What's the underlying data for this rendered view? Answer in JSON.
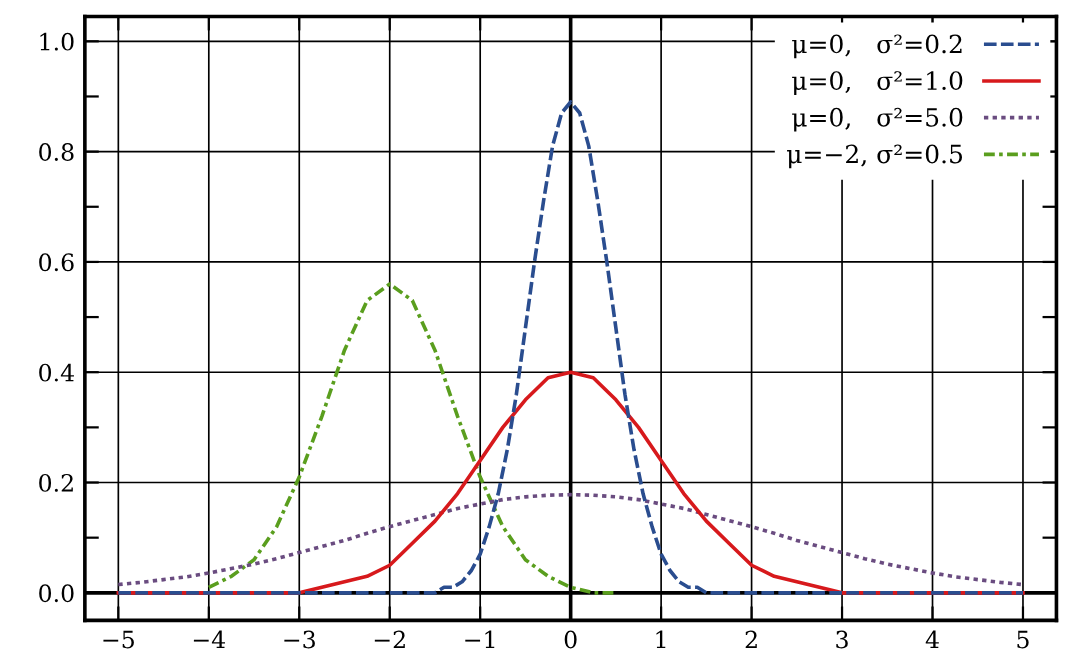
{
  "chart_data": {
    "type": "line",
    "x": [
      -5,
      -4.75,
      -4.5,
      -4.25,
      -4,
      -3.75,
      -3.5,
      -3.25,
      -3,
      -2.75,
      -2.5,
      -2.25,
      -2,
      -1.75,
      -1.5,
      -1.25,
      -1,
      -0.75,
      -0.5,
      -0.25,
      0,
      0.25,
      0.5,
      0.75,
      1,
      1.25,
      1.5,
      1.75,
      2,
      2.25,
      2.5,
      2.75,
      3,
      3.25,
      3.5,
      3.75,
      4,
      4.25,
      4.5,
      4.75,
      5
    ],
    "series": [
      {
        "name": "μ=0,   σ²=0.2",
        "color": "#2a4d8f",
        "line_style": "dashed",
        "x": [
          -5,
          -2,
          -1.6,
          -1.5,
          -1.4,
          -1.3,
          -1.2,
          -1.1,
          -1.0,
          -0.9,
          -0.8,
          -0.7,
          -0.6,
          -0.5,
          -0.4,
          -0.3,
          -0.2,
          -0.1,
          0,
          0.1,
          0.2,
          0.3,
          0.4,
          0.5,
          0.6,
          0.7,
          0.8,
          0.9,
          1.0,
          1.1,
          1.2,
          1.3,
          1.4,
          1.5,
          1.6,
          2,
          5
        ],
        "values": [
          0,
          0,
          0,
          0,
          0.01,
          0.01,
          0.02,
          0.04,
          0.07,
          0.12,
          0.18,
          0.26,
          0.36,
          0.48,
          0.6,
          0.71,
          0.81,
          0.87,
          0.89,
          0.87,
          0.81,
          0.71,
          0.6,
          0.48,
          0.36,
          0.26,
          0.18,
          0.12,
          0.07,
          0.04,
          0.02,
          0.01,
          0.01,
          0,
          0,
          0,
          0
        ]
      },
      {
        "name": "μ=0,   σ²=1.0",
        "color": "#d7191c",
        "line_style": "solid",
        "values": [
          0,
          0,
          0,
          0,
          0,
          0,
          0,
          0,
          0,
          0.01,
          0.02,
          0.03,
          0.05,
          0.09,
          0.13,
          0.18,
          0.24,
          0.3,
          0.35,
          0.39,
          0.4,
          0.39,
          0.35,
          0.3,
          0.24,
          0.18,
          0.13,
          0.09,
          0.05,
          0.03,
          0.02,
          0.01,
          0,
          0,
          0,
          0,
          0,
          0,
          0,
          0,
          0
        ]
      },
      {
        "name": "μ=0,   σ²=5.0",
        "color": "#6a4c80",
        "line_style": "dotted",
        "values": [
          0.015,
          0.019,
          0.024,
          0.029,
          0.036,
          0.044,
          0.052,
          0.062,
          0.073,
          0.084,
          0.095,
          0.108,
          0.12,
          0.131,
          0.142,
          0.153,
          0.161,
          0.169,
          0.174,
          0.177,
          0.178,
          0.177,
          0.174,
          0.169,
          0.161,
          0.153,
          0.142,
          0.131,
          0.12,
          0.108,
          0.095,
          0.084,
          0.073,
          0.062,
          0.052,
          0.044,
          0.036,
          0.029,
          0.024,
          0.019,
          0.015
        ]
      },
      {
        "name": "μ=−2, σ²=0.5",
        "color": "#5a9e1e",
        "line_style": "dashdot",
        "values": [
          null,
          null,
          null,
          null,
          0.01,
          0.03,
          0.06,
          0.12,
          0.21,
          0.32,
          0.44,
          0.53,
          0.56,
          0.53,
          0.44,
          0.32,
          0.21,
          0.12,
          0.06,
          0.03,
          0.01,
          0,
          0,
          null,
          null,
          null,
          null,
          null,
          null,
          null,
          null,
          null,
          null,
          null,
          null,
          null,
          null,
          null,
          null,
          null,
          null
        ]
      }
    ],
    "xlim": [
      -5.37,
      5.37
    ],
    "ylim": [
      -0.05,
      1.045
    ],
    "xticks": [
      {
        "value": -5,
        "label": "−5"
      },
      {
        "value": -4,
        "label": "−4"
      },
      {
        "value": -3,
        "label": "−3"
      },
      {
        "value": -2,
        "label": "−2"
      },
      {
        "value": -1,
        "label": "−1"
      },
      0,
      1,
      2,
      3,
      4,
      5
    ],
    "yticks": [
      {
        "value": 0,
        "label": "0.0"
      },
      {
        "value": 0.1,
        "label": null
      },
      {
        "value": 0.2,
        "label": "0.2"
      },
      {
        "value": 0.3,
        "label": null
      },
      {
        "value": 0.4,
        "label": "0.4"
      },
      {
        "value": 0.5,
        "label": null
      },
      {
        "value": 0.6,
        "label": "0.6"
      },
      {
        "value": 0.7,
        "label": null
      },
      {
        "value": 0.8,
        "label": "0.8"
      },
      {
        "value": 0.9,
        "label": null
      },
      {
        "value": 1.0,
        "label": "1.0"
      }
    ],
    "grid": true,
    "legend": "top right",
    "marker": "none"
  }
}
